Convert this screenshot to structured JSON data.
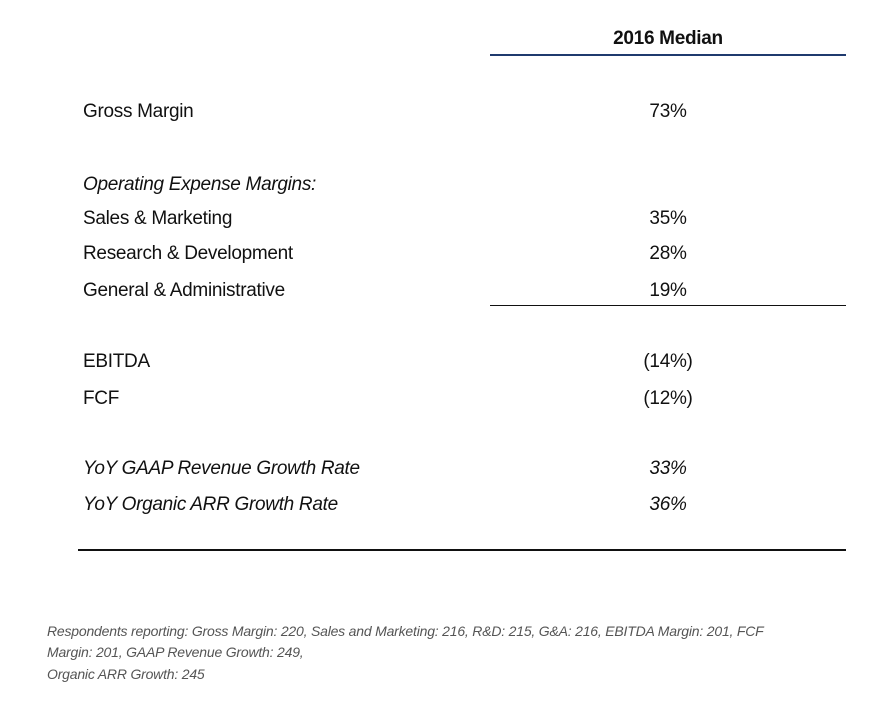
{
  "table": {
    "header": "2016 Median",
    "rows": [
      [
        "Gross Margin",
        "73%"
      ],
      [
        "Operating Expense Margins:"
      ],
      [
        "Sales & Marketing",
        "35%"
      ],
      [
        "Research & Development",
        "28%"
      ],
      [
        "General & Administrative",
        "19%"
      ],
      [
        "EBITDA",
        "(14%)"
      ],
      [
        "FCF",
        "(12%)"
      ],
      [
        "YoY GAAP Revenue Growth Rate",
        "33%"
      ],
      [
        "YoY Organic ARR Growth Rate",
        "36%"
      ]
    ]
  },
  "footnote": [
    "Respondents reporting: Gross Margin: 220, Sales and Marketing: 216, R&D: 215, G&A: 216, EBITDA Margin: 201, FCF",
    "Margin: 201, GAAP Revenue Growth: 249,",
    "Organic ARR Growth: 245"
  ]
}
